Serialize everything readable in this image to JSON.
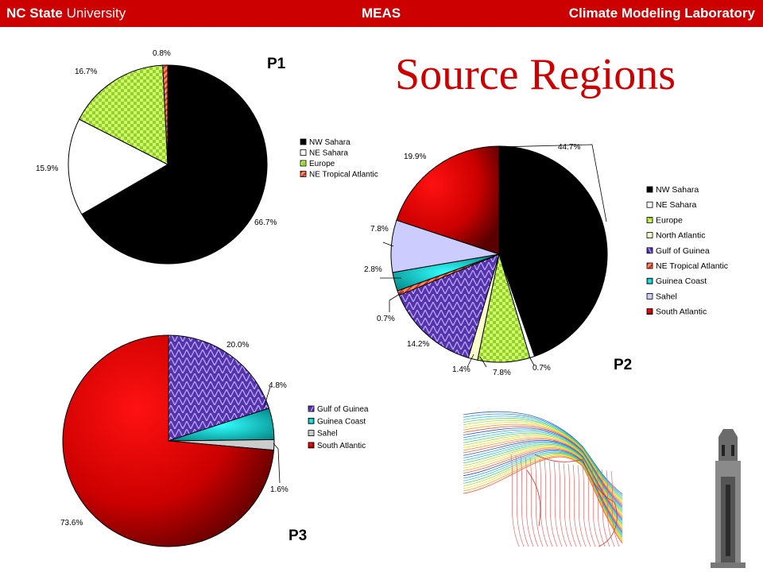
{
  "header": {
    "org_bold": "NC State",
    "org_rest": "University",
    "dept": "MEAS",
    "lab": "Climate Modeling Laboratory"
  },
  "title": "Source Regions",
  "labels": {
    "p1": "P1",
    "p2": "P2",
    "p3": "P3"
  },
  "colors": {
    "header": "#cc0000",
    "title": "#cc0000"
  },
  "chart_data": [
    {
      "id": "P1",
      "type": "pie",
      "title": "P1",
      "slices": [
        {
          "name": "NW Sahara",
          "value": 66.7,
          "label": "66.7%",
          "color": "#000000",
          "pattern": "solid"
        },
        {
          "name": "NE Sahara",
          "value": 15.9,
          "label": "15.9%",
          "color": "#ffffff",
          "pattern": "solid"
        },
        {
          "name": "Europe",
          "value": 16.7,
          "label": "16.7%",
          "color": "#ccff66",
          "pattern": "checker"
        },
        {
          "name": "NE Tropical Atlantic",
          "value": 0.8,
          "label": "0.8%",
          "color": "#ff6666",
          "pattern": "stripe"
        }
      ],
      "legend": [
        "NW Sahara",
        "NE Sahara",
        "Europe",
        "NE Tropical Atlantic"
      ],
      "legend_position": "right"
    },
    {
      "id": "P2",
      "type": "pie",
      "title": "P2",
      "slices": [
        {
          "name": "NW Sahara",
          "value": 44.7,
          "label": "44.7%",
          "color": "#000000",
          "pattern": "solid"
        },
        {
          "name": "NE Sahara",
          "value": 0.7,
          "label": "0.7%",
          "color": "#ffffff",
          "pattern": "solid"
        },
        {
          "name": "Europe",
          "value": 7.8,
          "label": "7.8%",
          "color": "#ccff66",
          "pattern": "checker"
        },
        {
          "name": "North Atlantic",
          "value": 1.4,
          "label": "1.4%",
          "color": "#ffffcc",
          "pattern": "solid"
        },
        {
          "name": "Gulf of Guinea",
          "value": 14.2,
          "label": "14.2%",
          "color": "#5533aa",
          "pattern": "lattice"
        },
        {
          "name": "NE Tropical Atlantic",
          "value": 0.7,
          "label": "0.7%",
          "color": "#ff6666",
          "pattern": "stripe"
        },
        {
          "name": "Guinea Coast",
          "value": 2.8,
          "label": "2.8%",
          "color": "#00cccc",
          "pattern": "gradient"
        },
        {
          "name": "Sahel",
          "value": 7.8,
          "label": "7.8%",
          "color": "#ccccff",
          "pattern": "solid"
        },
        {
          "name": "South Atlantic",
          "value": 19.9,
          "label": "19.9%",
          "color": "#ff0000",
          "pattern": "gradient"
        }
      ],
      "legend": [
        "NW Sahara",
        "NE Sahara",
        "Europe",
        "North Atlantic",
        "Gulf of Guinea",
        "NE Tropical Atlantic",
        "Guinea Coast",
        "Sahel",
        "South Atlantic"
      ],
      "legend_position": "right"
    },
    {
      "id": "P3",
      "type": "pie",
      "title": "P3",
      "slices": [
        {
          "name": "Gulf of Guinea",
          "value": 20.0,
          "label": "20.0%",
          "color": "#5533aa",
          "pattern": "lattice"
        },
        {
          "name": "Guinea Coast",
          "value": 4.8,
          "label": "4.8%",
          "color": "#00cccc",
          "pattern": "gradient"
        },
        {
          "name": "Sahel",
          "value": 1.6,
          "label": "1.6%",
          "color": "#cccccc",
          "pattern": "solid"
        },
        {
          "name": "South Atlantic",
          "value": 73.6,
          "label": "73.6%",
          "color": "#ff0000",
          "pattern": "gradient"
        }
      ],
      "legend": [
        "Gulf of Guinea",
        "Guinea Coast",
        "Sahel",
        "South Atlantic"
      ],
      "legend_position": "right"
    }
  ]
}
